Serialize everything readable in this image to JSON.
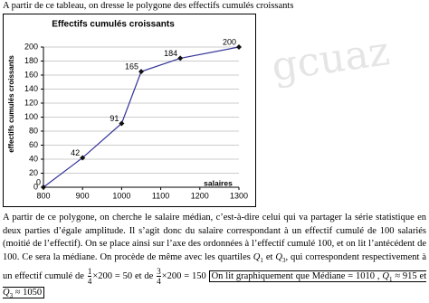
{
  "intro": "A partir de ce tableau, on dresse le polygone des effectifs cumulés croissants",
  "watermark": "gcuaz",
  "chart_data": {
    "type": "line",
    "title": "Effectifs cumulés croissants",
    "x_label": "salaires",
    "y_label": "effectifs cumulés croissants",
    "x": [
      800,
      900,
      1000,
      1050,
      1150,
      1300
    ],
    "series": [
      {
        "name": "effectifs cumulés croissants",
        "color": "#333399",
        "values": [
          0,
          42,
          91,
          165,
          184,
          200
        ]
      }
    ],
    "xlim": [
      800,
      1300
    ],
    "xticks": [
      800,
      900,
      1000,
      1100,
      1200,
      1300
    ],
    "ylim": [
      0,
      200
    ],
    "yticks": [
      0,
      20,
      40,
      60,
      80,
      100,
      120,
      140,
      160,
      180,
      200
    ],
    "grid": true,
    "data_labels": true
  },
  "paragraph": {
    "t1": "A partir de ce polygone, on cherche le salaire médian, c’est-à-dire celui qui va partager la série statistique en deux parties d’égale amplitude. Il s’agit donc du salaire correspondant à un effectif cumulé de 100 salariés (moitié de l’effectif). On se place ainsi sur l’axe des ordonnées à l’effectif cumulé 100, et on lit l’antécédent de 100. Ce sera la médiane. On procède de même avec les quartiles",
    "q1": {
      "letter": "Q",
      "sub": "1"
    },
    "t2": "et",
    "q3": {
      "letter": "Q",
      "sub": "3"
    },
    "t3": ", qui correspondent respectivement à un effectif cumulé de",
    "frac1": {
      "num": "1",
      "den": "4",
      "rest": "×200 = 50"
    },
    "t4": "et de",
    "frac2": {
      "num": "3",
      "den": "4",
      "rest": "×200 = 150"
    },
    "box": {
      "t1": "On lit graphiquement que Médiane = 1010 ,",
      "q1": {
        "letter": "Q",
        "sub": "1"
      },
      "t2": "≈ 915  et",
      "q3": {
        "letter": "Q",
        "sub": "3"
      },
      "t3": "≈ 1050"
    }
  }
}
